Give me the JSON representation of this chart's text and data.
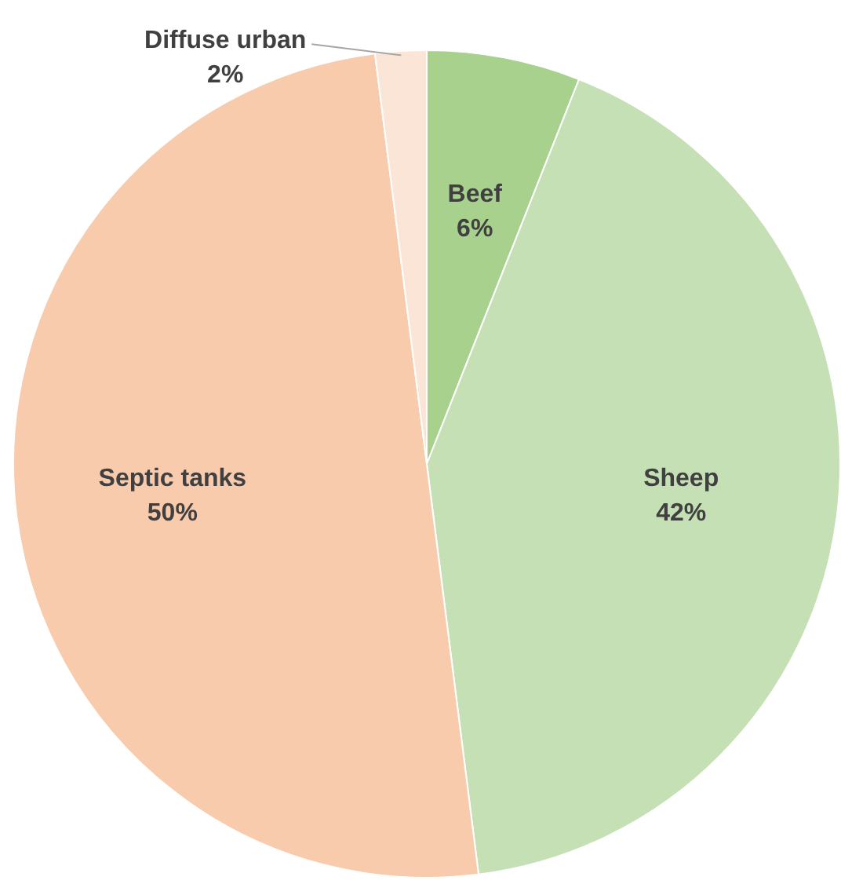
{
  "chart_data": {
    "type": "pie",
    "categories": [
      "Beef",
      "Sheep",
      "Septic tanks",
      "Diffuse urban"
    ],
    "values": [
      6,
      42,
      50,
      2
    ],
    "value_labels": [
      "6%",
      "42%",
      "50%",
      "2%"
    ],
    "colors": [
      "#a9d18e",
      "#c5e0b4",
      "#f8cbad",
      "#fbe5d6"
    ],
    "legend": false
  }
}
